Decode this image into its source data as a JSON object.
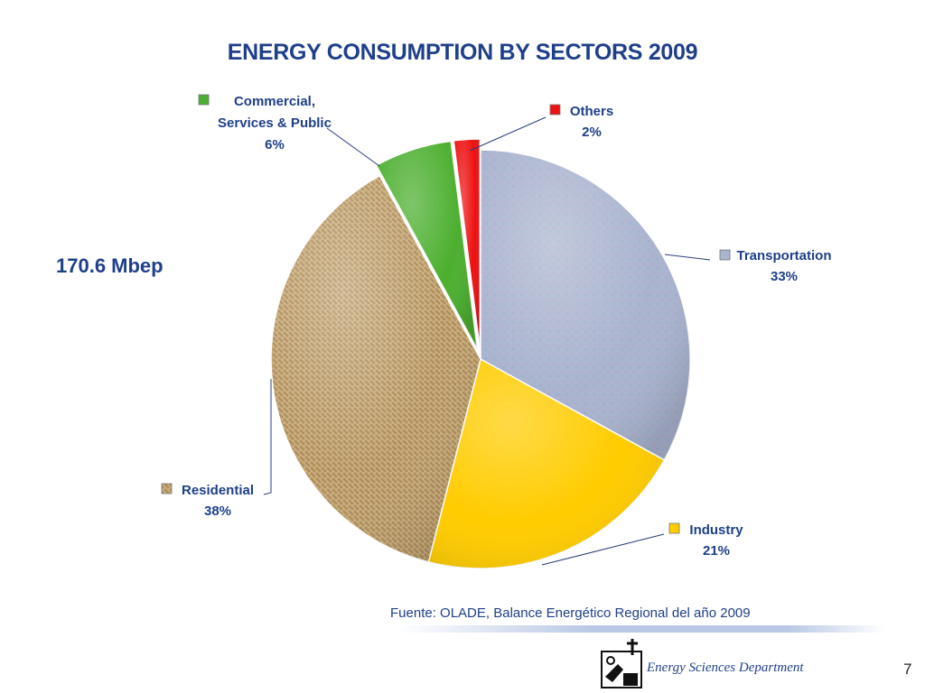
{
  "slide": {
    "title": "ENERGY CONSUMPTION BY SECTORS  2009",
    "total": "170.6 Mbep",
    "source": "Fuente:  OLADE,  Balance Energético Regional del año 2009",
    "department": "Energy Sciences Department",
    "page_number": "7"
  },
  "chart_data": {
    "type": "pie",
    "title": "ENERGY CONSUMPTION BY SECTORS  2009",
    "slices": [
      {
        "name": "Transportation",
        "value": 33,
        "label": "33%",
        "color": "#a7b3cf"
      },
      {
        "name": "Industry",
        "value": 21,
        "label": "21%",
        "color": "#ffcc00"
      },
      {
        "name": "Residential",
        "value": 38,
        "label": "38%",
        "color": "#c6a878"
      },
      {
        "name": "Commercial, Services & Public",
        "value": 6,
        "label": "6%",
        "color": "#4caf2f"
      },
      {
        "name": "Others",
        "value": 2,
        "label": "2%",
        "color": "#ee1111"
      }
    ],
    "legend": "inline labels with leader lines"
  }
}
